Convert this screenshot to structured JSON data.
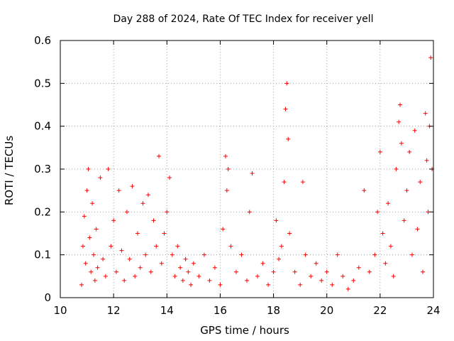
{
  "chart_data": {
    "type": "scatter",
    "title": "Day 288 of 2024, Rate Of TEC Index for receiver yell",
    "xlabel": "GPS time / hours",
    "ylabel": "ROTI / TECUs",
    "xlim": [
      10,
      24
    ],
    "ylim": [
      0,
      0.6
    ],
    "x_ticks": [
      10,
      12,
      14,
      16,
      18,
      20,
      22,
      24
    ],
    "x_tick_labels": [
      "10",
      "12",
      "14",
      "16",
      "18",
      "20",
      "22",
      "24"
    ],
    "y_ticks": [
      0,
      0.1,
      0.2,
      0.3,
      0.4,
      0.5,
      0.6
    ],
    "y_tick_labels": [
      "0",
      "0.1",
      "0.2",
      "0.3",
      "0.4",
      "0.5",
      "0.6"
    ],
    "grid": true,
    "marker": "+",
    "marker_color": "#ff0000",
    "series": [
      {
        "name": "ROTI",
        "x": [
          10.8,
          10.85,
          10.9,
          10.95,
          11.0,
          11.05,
          11.1,
          11.15,
          11.2,
          11.25,
          11.3,
          11.35,
          11.4,
          11.5,
          11.6,
          11.7,
          11.8,
          11.9,
          12.0,
          12.1,
          12.2,
          12.3,
          12.4,
          12.5,
          12.6,
          12.7,
          12.8,
          12.9,
          13.0,
          13.1,
          13.2,
          13.3,
          13.4,
          13.5,
          13.6,
          13.7,
          13.8,
          13.9,
          14.0,
          14.1,
          14.2,
          14.3,
          14.4,
          14.5,
          14.6,
          14.7,
          14.8,
          14.9,
          15.0,
          15.2,
          15.4,
          15.6,
          15.8,
          16.0,
          16.1,
          16.2,
          16.25,
          16.3,
          16.4,
          16.6,
          16.8,
          17.0,
          17.1,
          17.2,
          17.4,
          17.6,
          17.8,
          18.0,
          18.1,
          18.2,
          18.3,
          18.4,
          18.45,
          18.5,
          18.55,
          18.6,
          18.8,
          19.0,
          19.1,
          19.2,
          19.4,
          19.6,
          19.8,
          20.0,
          20.2,
          20.4,
          20.6,
          20.8,
          21.0,
          21.2,
          21.4,
          21.6,
          21.8,
          21.9,
          22.0,
          22.1,
          22.2,
          22.3,
          22.4,
          22.5,
          22.6,
          22.7,
          22.75,
          22.8,
          22.9,
          23.0,
          23.1,
          23.2,
          23.3,
          23.4,
          23.5,
          23.6,
          23.7,
          23.75,
          23.8,
          23.85,
          23.9,
          23.95
        ],
        "y": [
          0.03,
          0.12,
          0.19,
          0.08,
          0.25,
          0.3,
          0.14,
          0.06,
          0.22,
          0.1,
          0.04,
          0.16,
          0.07,
          0.28,
          0.09,
          0.05,
          0.3,
          0.12,
          0.18,
          0.06,
          0.25,
          0.11,
          0.04,
          0.2,
          0.09,
          0.26,
          0.05,
          0.15,
          0.07,
          0.22,
          0.1,
          0.24,
          0.06,
          0.18,
          0.12,
          0.33,
          0.08,
          0.15,
          0.2,
          0.28,
          0.1,
          0.05,
          0.12,
          0.07,
          0.04,
          0.09,
          0.06,
          0.03,
          0.08,
          0.05,
          0.1,
          0.04,
          0.07,
          0.03,
          0.16,
          0.33,
          0.25,
          0.3,
          0.12,
          0.06,
          0.1,
          0.04,
          0.2,
          0.29,
          0.05,
          0.08,
          0.03,
          0.06,
          0.18,
          0.09,
          0.12,
          0.27,
          0.44,
          0.5,
          0.37,
          0.15,
          0.06,
          0.03,
          0.27,
          0.1,
          0.05,
          0.08,
          0.04,
          0.06,
          0.03,
          0.1,
          0.05,
          0.02,
          0.04,
          0.07,
          0.25,
          0.06,
          0.1,
          0.2,
          0.34,
          0.15,
          0.08,
          0.22,
          0.12,
          0.05,
          0.3,
          0.41,
          0.45,
          0.36,
          0.18,
          0.25,
          0.34,
          0.1,
          0.39,
          0.16,
          0.27,
          0.06,
          0.43,
          0.32,
          0.2,
          0.4,
          0.56,
          0.3
        ]
      }
    ]
  }
}
